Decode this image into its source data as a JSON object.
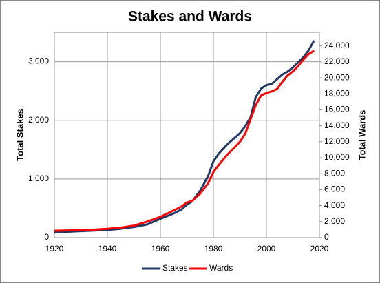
{
  "chart_data": {
    "type": "line",
    "title": "Stakes and Wards",
    "y_label": "Total Stakes",
    "y2_label": "Total Wards",
    "x": [
      1920,
      1925,
      1930,
      1935,
      1940,
      1945,
      1950,
      1955,
      1960,
      1965,
      1968,
      1970,
      1972,
      1975,
      1978,
      1980,
      1982,
      1985,
      1988,
      1990,
      1992,
      1994,
      1996,
      1998,
      2000,
      2002,
      2004,
      2006,
      2008,
      2010,
      2012,
      2014,
      2016,
      2018
    ],
    "series": [
      {
        "name": "Stakes",
        "color": "#1f3864",
        "values": [
          86,
          100,
          110,
          120,
          130,
          150,
          180,
          224,
          319,
          412,
          480,
          560,
          620,
          800,
          1050,
          1300,
          1430,
          1580,
          1700,
          1780,
          1900,
          2050,
          2400,
          2540,
          2600,
          2620,
          2700,
          2780,
          2830,
          2900,
          2990,
          3080,
          3200,
          3360
        ]
      },
      {
        "name": "Wards",
        "color": "#ff0000",
        "axis": "y2",
        "values": [
          850,
          900,
          950,
          1000,
          1100,
          1250,
          1500,
          2000,
          2600,
          3400,
          3900,
          4400,
          4600,
          5500,
          6800,
          8200,
          9100,
          10300,
          11300,
          12000,
          13000,
          14800,
          16600,
          17800,
          18100,
          18300,
          18600,
          19500,
          20300,
          20800,
          21500,
          22300,
          23000,
          23400
        ]
      }
    ],
    "xlim": [
      1920,
      2020
    ],
    "xticks": [
      1920,
      1940,
      1960,
      1980,
      2000,
      2020
    ],
    "ylim": [
      0,
      3500
    ],
    "yticks": [
      0,
      {
        "value": 1000,
        "label": "1,000"
      },
      {
        "value": 2000,
        "label": "2,000"
      },
      {
        "value": 3000,
        "label": "3,000"
      }
    ],
    "y2lim": [
      0,
      25700
    ],
    "y2ticks": [
      0,
      {
        "value": 2000,
        "label": "2,000"
      },
      {
        "value": 4000,
        "label": "4,000"
      },
      {
        "value": 6000,
        "label": "6,000"
      },
      {
        "value": 8000,
        "label": "8,000"
      },
      {
        "value": 10000,
        "label": "10,000"
      },
      {
        "value": 12000,
        "label": "12,000"
      },
      {
        "value": 14000,
        "label": "14,000"
      },
      {
        "value": 16000,
        "label": "16,000"
      },
      {
        "value": 18000,
        "label": "18,000"
      },
      {
        "value": 20000,
        "label": "20,000"
      },
      {
        "value": 22000,
        "label": "22,000"
      },
      {
        "value": 24000,
        "label": "24,000"
      }
    ],
    "grid": true,
    "legend": "bottom"
  }
}
